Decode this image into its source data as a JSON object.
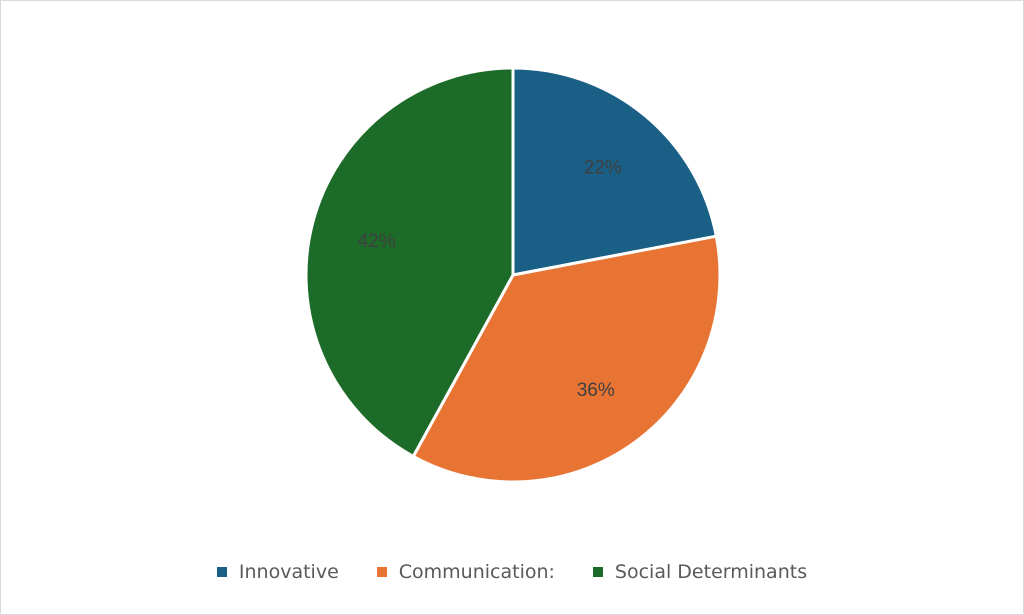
{
  "chart_data": {
    "type": "pie",
    "title": "",
    "categories": [
      "Innovative",
      "Communication:",
      "Social Determinants"
    ],
    "values": [
      22,
      36,
      42
    ],
    "value_labels": [
      "22%",
      "36%",
      "42%"
    ],
    "colors": [
      "#1a5f85",
      "#e87434",
      "#1c6b28"
    ],
    "start_angle": "12 o'clock",
    "direction": "clockwise",
    "legend_position": "bottom"
  },
  "legend": {
    "items": [
      {
        "label": "Innovative",
        "color": "#1a5f85"
      },
      {
        "label": "Communication:",
        "color": "#e87434"
      },
      {
        "label": "Social Determinants",
        "color": "#1c6b28"
      }
    ]
  }
}
